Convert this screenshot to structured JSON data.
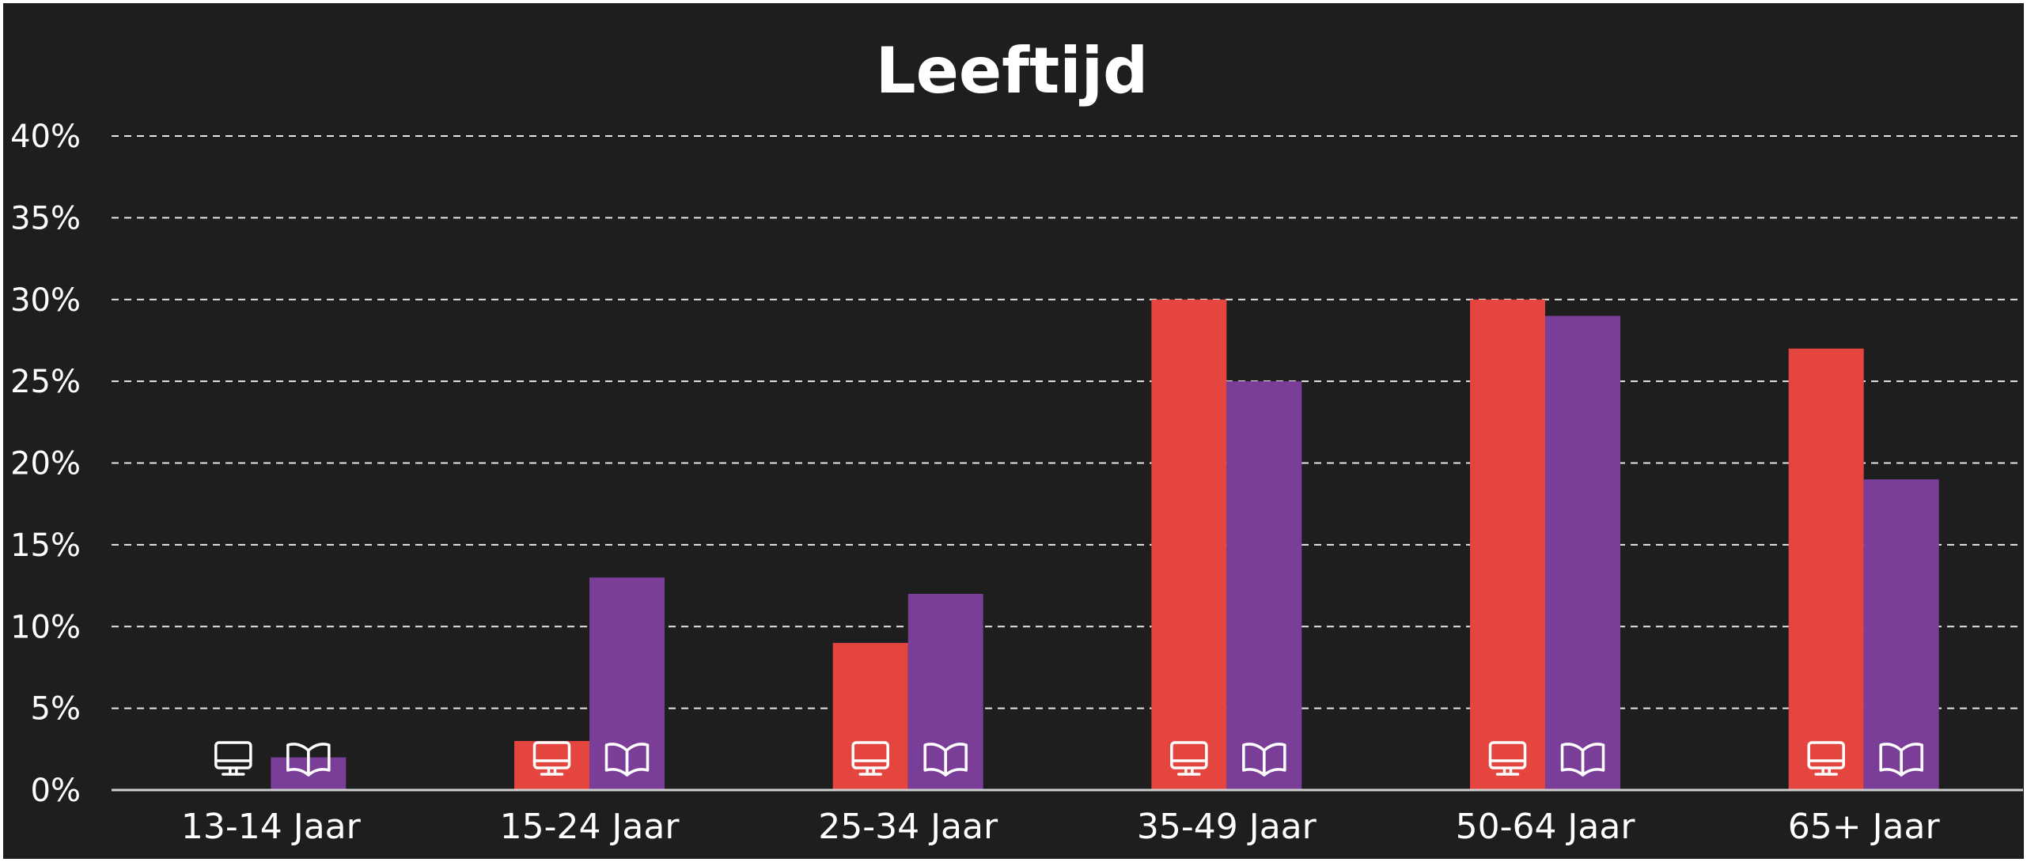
{
  "chart_data": {
    "type": "bar",
    "title": "Leeftijd",
    "categories": [
      "13-14 Jaar",
      "15-24 Jaar",
      "25-34 Jaar",
      "35-49 Jaar",
      "50-64 Jaar",
      "65+ Jaar"
    ],
    "series": [
      {
        "icon": "monitor-icon",
        "color": "#e5453f",
        "values": [
          0,
          3,
          9,
          30,
          30,
          27
        ]
      },
      {
        "icon": "book-icon",
        "color": "#7a3d98",
        "values": [
          2,
          13,
          12,
          25,
          29,
          19
        ]
      }
    ],
    "ylim": [
      0,
      40
    ],
    "yticks": [
      0,
      5,
      10,
      15,
      20,
      25,
      30,
      35,
      40
    ],
    "ytick_labels": [
      "0%",
      "5%",
      "10%",
      "15%",
      "20%",
      "25%",
      "30%",
      "35%",
      "40%"
    ],
    "grid": true,
    "grid_style": "dashed",
    "background": "#1e1e1e",
    "text_color": "#ffffff"
  }
}
